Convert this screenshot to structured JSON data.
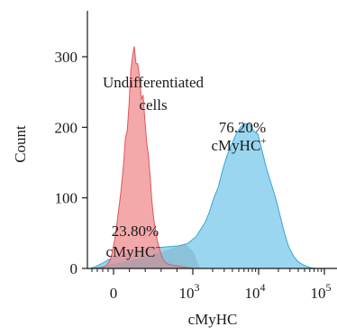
{
  "chart_data": {
    "type": "area",
    "title": "",
    "xlabel": "cMyHC",
    "ylabel": "Count",
    "ylim": [
      0,
      350
    ],
    "y_ticks": [
      0,
      100,
      200,
      300
    ],
    "x_scale": "biexponential",
    "x_ticks": [
      {
        "value": 0,
        "label": "0",
        "sup": ""
      },
      {
        "value": 1000,
        "label": "10",
        "sup": "3"
      },
      {
        "value": 10000,
        "label": "10",
        "sup": "4"
      },
      {
        "value": 100000,
        "label": "10",
        "sup": "5"
      }
    ],
    "series": [
      {
        "name": "Undifferentiated cells",
        "color": "#f08f92",
        "x": [
          0,
          5,
          10,
          15,
          18,
          22,
          25,
          28,
          30,
          33,
          35,
          38,
          40,
          42,
          44,
          46,
          48,
          50,
          52,
          54,
          56,
          58,
          60,
          62,
          64,
          66,
          68,
          70,
          72,
          74,
          76,
          78,
          80,
          82,
          84,
          86,
          88,
          90,
          92,
          94,
          96,
          98,
          100,
          102,
          104,
          106,
          108,
          110,
          112,
          114,
          116
        ],
        "y": [
          0,
          0,
          1,
          2,
          4,
          10,
          22,
          42,
          60,
          90,
          110,
          150,
          185,
          195,
          230,
          280,
          300,
          315,
          290,
          290,
          270,
          240,
          245,
          210,
          180,
          160,
          130,
          95,
          70,
          55,
          40,
          30,
          22,
          15,
          10,
          8,
          6,
          6,
          5,
          5,
          4,
          4,
          3,
          3,
          2,
          2,
          2,
          1,
          1,
          1,
          0
        ]
      },
      {
        "name": "cMyHC+",
        "color": "#78c8ea",
        "x": [
          0,
          5,
          10,
          15,
          20,
          30,
          40,
          50,
          60,
          70,
          80,
          90,
          100,
          110,
          120,
          125,
          130,
          135,
          140,
          145,
          150,
          155,
          160,
          165,
          170,
          175,
          180,
          185,
          190,
          195,
          200,
          205,
          210,
          215,
          220,
          225,
          230,
          235,
          240,
          245,
          250,
          255
        ],
        "y": [
          0,
          2,
          5,
          8,
          12,
          16,
          20,
          24,
          26,
          28,
          30,
          31,
          32,
          35,
          45,
          55,
          65,
          80,
          100,
          115,
          140,
          160,
          175,
          190,
          200,
          205,
          205,
          195,
          190,
          165,
          140,
          120,
          100,
          75,
          50,
          30,
          18,
          10,
          6,
          3,
          1,
          0
        ]
      }
    ],
    "annotations": [
      {
        "lines": [
          "Undifferentiated",
          "cells"
        ]
      },
      {
        "lines": [
          "76.20%",
          "cMyHC"
        ],
        "sup": "+"
      },
      {
        "lines": [
          "23.80%",
          "cMyHC"
        ],
        "sup": "−"
      }
    ]
  }
}
